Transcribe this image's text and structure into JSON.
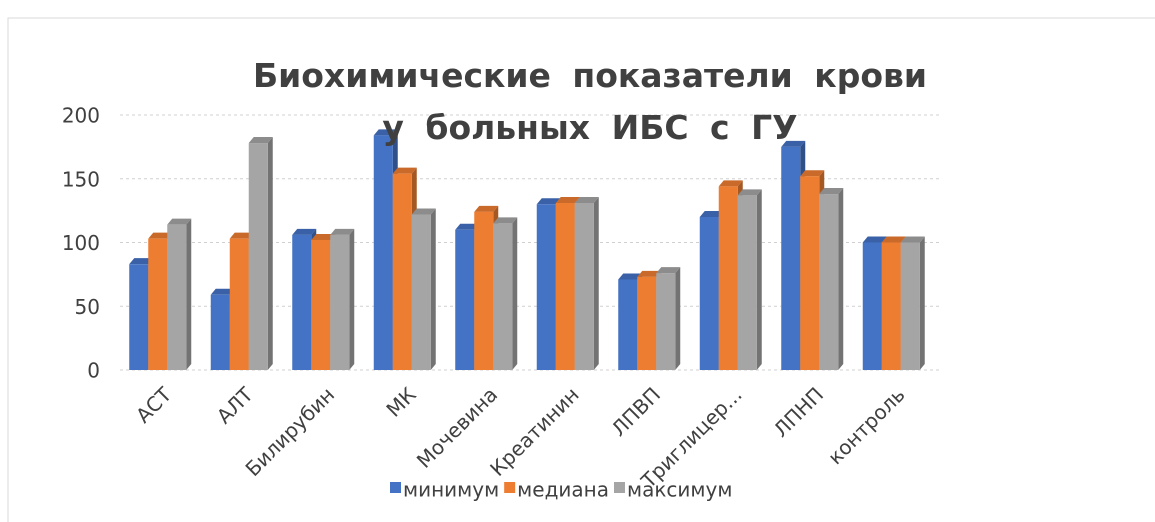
{
  "chart_data": {
    "type": "bar",
    "title": "Биохимические показатели крови у больных ИБС с ГУ",
    "categories": [
      "АСТ",
      "АЛТ",
      "Билирубин",
      "МК",
      "Мочевина",
      "Креатинин",
      "ЛПВП",
      "Триглицер...",
      "ЛПНП",
      "контроль"
    ],
    "series": [
      {
        "name": "минимум",
        "color": "#4472c4",
        "values": [
          83,
          59,
          106,
          184,
          110,
          130,
          71,
          120,
          175,
          100
        ]
      },
      {
        "name": "медиана",
        "color": "#ed7d31",
        "values": [
          103,
          103,
          102,
          154,
          124,
          131,
          73,
          144,
          152,
          100
        ]
      },
      {
        "name": "максимум",
        "color": "#a5a5a5",
        "values": [
          114,
          178,
          106,
          122,
          115,
          131,
          76,
          137,
          138,
          100
        ]
      }
    ],
    "ylim": [
      0,
      200
    ],
    "yticks": [
      0,
      50,
      100,
      150,
      200
    ],
    "grid": true,
    "legend": "bottom"
  }
}
